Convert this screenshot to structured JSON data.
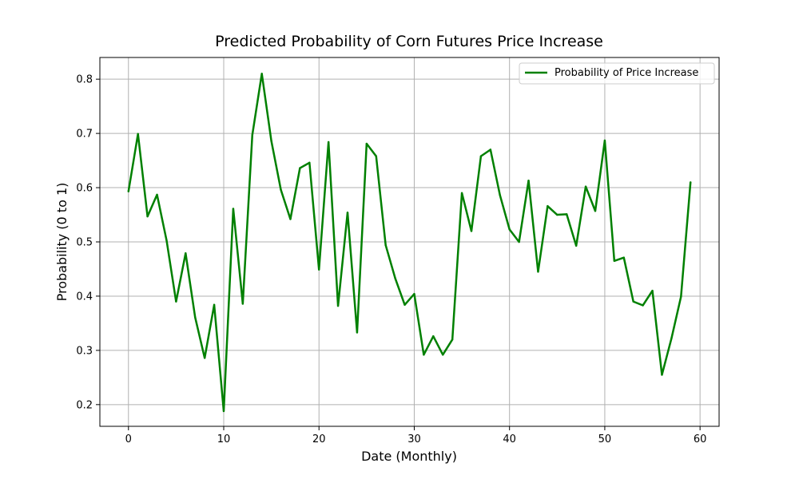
{
  "chart_data": {
    "type": "line",
    "title": "Predicted Probability of Corn Futures Price Increase",
    "xlabel": "Date (Monthly)",
    "ylabel": "Probability (0 to 1)",
    "xlim": [
      -3,
      62
    ],
    "ylim": [
      0.16,
      0.84
    ],
    "xticks": [
      0,
      10,
      20,
      30,
      40,
      50,
      60
    ],
    "yticks": [
      0.2,
      0.3,
      0.4,
      0.5,
      0.6,
      0.7,
      0.8
    ],
    "xtick_labels": [
      "0",
      "10",
      "20",
      "30",
      "40",
      "50",
      "60"
    ],
    "ytick_labels": [
      "0.2",
      "0.3",
      "0.4",
      "0.5",
      "0.6",
      "0.7",
      "0.8"
    ],
    "grid": true,
    "legend_position": "top-right",
    "series": [
      {
        "name": "Probability of Price Increase",
        "color": "#008000",
        "x": [
          0,
          1,
          2,
          3,
          4,
          5,
          6,
          7,
          8,
          9,
          10,
          11,
          12,
          13,
          14,
          15,
          16,
          17,
          18,
          19,
          20,
          21,
          22,
          23,
          24,
          25,
          26,
          27,
          28,
          29,
          30,
          31,
          32,
          33,
          34,
          35,
          36,
          37,
          38,
          39,
          40,
          41,
          42,
          43,
          44,
          45,
          46,
          47,
          48,
          49,
          50,
          51,
          52,
          53,
          54,
          55,
          56,
          57,
          58,
          59
        ],
        "values": [
          0.593,
          0.699,
          0.547,
          0.587,
          0.503,
          0.39,
          0.479,
          0.361,
          0.286,
          0.384,
          0.188,
          0.561,
          0.386,
          0.697,
          0.81,
          0.686,
          0.596,
          0.542,
          0.636,
          0.646,
          0.449,
          0.684,
          0.382,
          0.554,
          0.333,
          0.681,
          0.658,
          0.494,
          0.433,
          0.384,
          0.404,
          0.292,
          0.326,
          0.292,
          0.32,
          0.59,
          0.52,
          0.658,
          0.67,
          0.586,
          0.523,
          0.5,
          0.613,
          0.445,
          0.566,
          0.55,
          0.551,
          0.493,
          0.602,
          0.557,
          0.687,
          0.465,
          0.471,
          0.39,
          0.383,
          0.41,
          0.255,
          0.322,
          0.399,
          0.61
        ]
      }
    ]
  }
}
